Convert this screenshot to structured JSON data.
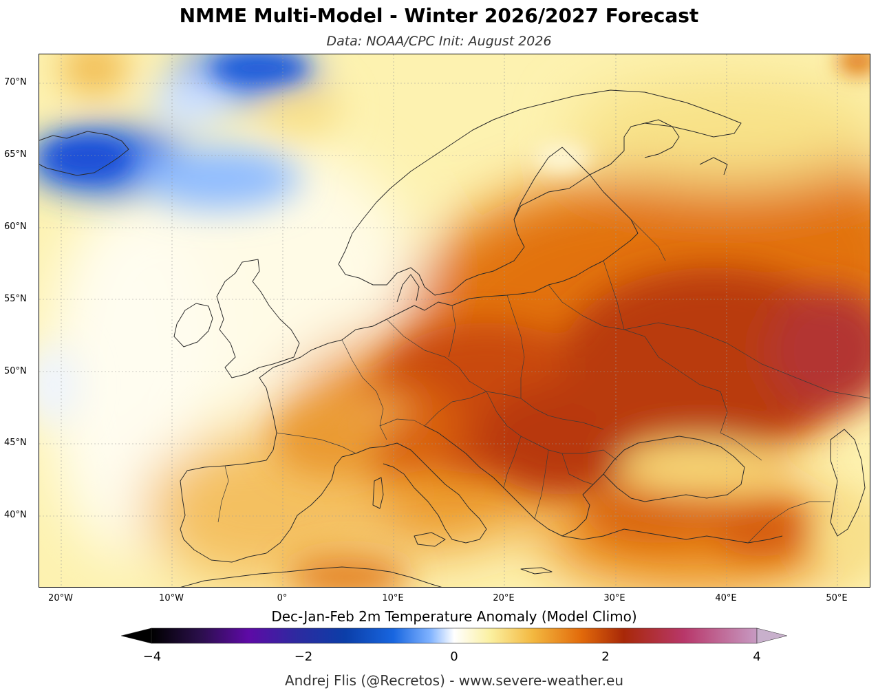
{
  "header": {
    "title": "NMME Multi-Model - Winter 2026/2027 Forecast",
    "subtitle": "Data: NOAA/CPC   Init: August 2026"
  },
  "map": {
    "region": "Europe",
    "projection": "equirectangular",
    "lon_range": [
      -22,
      53
    ],
    "lat_range": [
      35,
      72
    ],
    "lat_labels": [
      "70°N",
      "65°N",
      "60°N",
      "55°N",
      "50°N",
      "45°N",
      "40°N"
    ],
    "lon_labels": [
      "20°W",
      "10°W",
      "0°",
      "10°E",
      "20°E",
      "30°E",
      "40°E",
      "50°E"
    ],
    "anomaly_blobs": [
      {
        "name": "Iceland cold anomaly",
        "lon": -15,
        "lat": 64.5,
        "value": -1.2
      },
      {
        "name": "Norwegian Sea cold anomaly",
        "lon": -5,
        "lat": 64,
        "value": -0.6
      },
      {
        "name": "Arctic cold anomaly",
        "lon": 0,
        "lat": 71,
        "value": -0.9
      },
      {
        "name": "Central Europe warm anomaly",
        "lon": 18,
        "lat": 48,
        "value": 1.9
      },
      {
        "name": "Pannonian warm anomaly",
        "lon": 22,
        "lat": 46,
        "value": 2.1
      },
      {
        "name": "Western Russia warm anomaly",
        "lon": 42,
        "lat": 54,
        "value": 2.3
      },
      {
        "name": "Volga warm anomaly",
        "lon": 50,
        "lat": 51,
        "value": 2.6
      },
      {
        "name": "Anatolia warm anomaly",
        "lon": 33,
        "lat": 39,
        "value": 1.6
      },
      {
        "name": "Iberia warm anomaly",
        "lon": -2,
        "lat": 38,
        "value": 1.1
      }
    ]
  },
  "colorbar": {
    "label": "Dec-Jan-Feb 2m Temperature Anomaly (Model Climo)",
    "min": -4,
    "max": 4,
    "ticks": [
      "−4",
      "−2",
      "0",
      "2",
      "4"
    ],
    "colors": [
      "#000000",
      "#2a0f4a",
      "#5e0aa6",
      "#2d2aa0",
      "#0b3ea8",
      "#1866e0",
      "#7fb2ff",
      "#ffffff",
      "#fbf0a0",
      "#f3b840",
      "#e26a0a",
      "#a82808",
      "#b8376a",
      "#c79ac2"
    ]
  },
  "credit": "Andrej Flis (@Recretos) - www.severe-weather.eu"
}
